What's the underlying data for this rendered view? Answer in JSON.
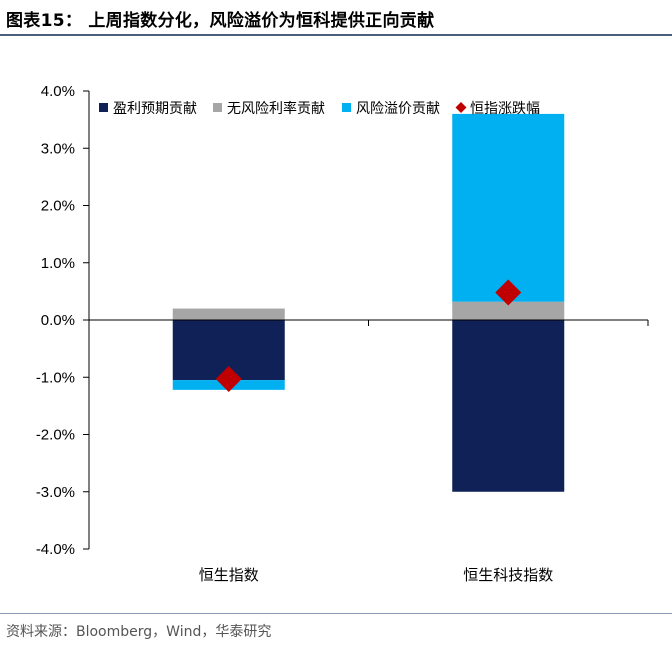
{
  "title": "图表15：  上周指数分化，风险溢价为恒科提供正向贡献",
  "source": "资料来源：Bloomberg，Wind，华泰研究",
  "chart_data": {
    "type": "bar",
    "stacked": true,
    "categories": [
      "恒生指数",
      "恒生科技指数"
    ],
    "series": [
      {
        "name": "盈利预期贡献",
        "color": "#0f2157",
        "values": [
          -1.05,
          -3.0
        ]
      },
      {
        "name": "无风险利率贡献",
        "color": "#a6a6a6",
        "values": [
          0.2,
          0.32
        ]
      },
      {
        "name": "风险溢价贡献",
        "color": "#00b0f0",
        "values": [
          -0.17,
          3.28
        ]
      }
    ],
    "markers": {
      "name": "恒指涨跌幅",
      "color": "#c00000",
      "values": [
        -1.03,
        0.48
      ]
    },
    "ylim": [
      -4.0,
      4.0
    ],
    "yticks": [
      "-4.0%",
      "-3.0%",
      "-2.0%",
      "-1.0%",
      "0.0%",
      "1.0%",
      "2.0%",
      "3.0%",
      "4.0%"
    ],
    "ytick_values": [
      -4,
      -3,
      -2,
      -1,
      0,
      1,
      2,
      3,
      4
    ],
    "legend_position": "top",
    "grid": false
  }
}
